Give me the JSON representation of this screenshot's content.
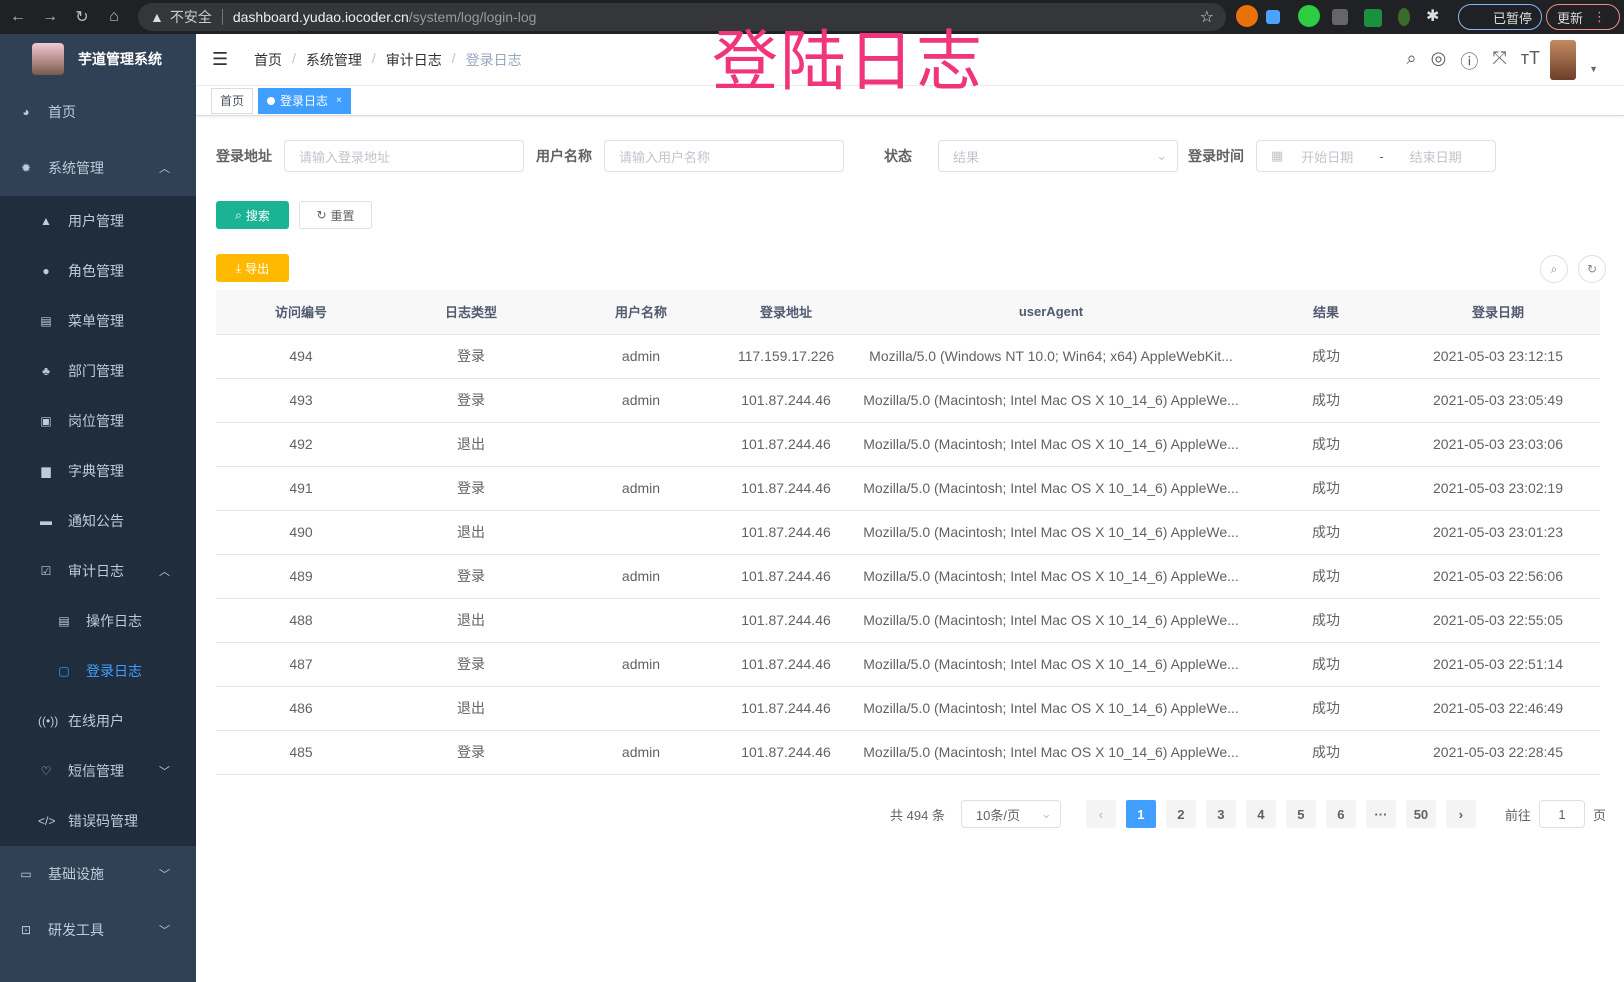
{
  "browser": {
    "security": "不安全",
    "host": "dashboard.yudao.iocoder.cn",
    "path": "/system/log/login-log",
    "paused": "已暂停",
    "update": "更新"
  },
  "overlay_title": "登陆日志",
  "sidebar": {
    "logo": "芋道管理系统",
    "items": [
      {
        "label": "首页",
        "icon": "dashboard-icon"
      },
      {
        "label": "系统管理",
        "icon": "gear-icon",
        "expanded": true,
        "children": [
          {
            "label": "用户管理",
            "icon": "user-icon"
          },
          {
            "label": "角色管理",
            "icon": "role-icon"
          },
          {
            "label": "菜单管理",
            "icon": "menu-icon"
          },
          {
            "label": "部门管理",
            "icon": "tree-icon"
          },
          {
            "label": "岗位管理",
            "icon": "post-icon"
          },
          {
            "label": "字典管理",
            "icon": "dict-icon"
          },
          {
            "label": "通知公告",
            "icon": "message-icon"
          },
          {
            "label": "审计日志",
            "icon": "edit-icon",
            "expanded": true,
            "children": [
              {
                "label": "操作日志",
                "icon": "form-icon"
              },
              {
                "label": "登录日志",
                "icon": "logininfor-icon",
                "active": true
              }
            ]
          },
          {
            "label": "在线用户",
            "icon": "online-icon"
          },
          {
            "label": "短信管理",
            "icon": "validcode-icon"
          },
          {
            "label": "错误码管理",
            "icon": "code-icon"
          }
        ]
      },
      {
        "label": "基础设施",
        "icon": "monitor-icon"
      },
      {
        "label": "研发工具",
        "icon": "tool-icon"
      }
    ]
  },
  "header": {
    "breadcrumb": [
      "首页",
      "系统管理",
      "审计日志",
      "登录日志"
    ]
  },
  "tags": [
    {
      "label": "首页"
    },
    {
      "label": "登录日志",
      "active": true
    }
  ],
  "filters": {
    "address_label": "登录地址",
    "address_ph": "请输入登录地址",
    "username_label": "用户名称",
    "username_ph": "请输入用户名称",
    "status_label": "状态",
    "status_ph": "结果",
    "time_label": "登录时间",
    "start_ph": "开始日期",
    "sep": "-",
    "end_ph": "结束日期"
  },
  "buttons": {
    "search": "搜索",
    "reset": "重置",
    "export": "导出"
  },
  "table": {
    "columns": [
      "访问编号",
      "日志类型",
      "用户名称",
      "登录地址",
      "userAgent",
      "结果",
      "登录日期"
    ],
    "rows": [
      [
        "494",
        "登录",
        "admin",
        "117.159.17.226",
        "Mozilla/5.0 (Windows NT 10.0; Win64; x64) AppleWebKit...",
        "成功",
        "2021-05-03 23:12:15"
      ],
      [
        "493",
        "登录",
        "admin",
        "101.87.244.46",
        "Mozilla/5.0 (Macintosh; Intel Mac OS X 10_14_6) AppleWe...",
        "成功",
        "2021-05-03 23:05:49"
      ],
      [
        "492",
        "退出",
        "",
        "101.87.244.46",
        "Mozilla/5.0 (Macintosh; Intel Mac OS X 10_14_6) AppleWe...",
        "成功",
        "2021-05-03 23:03:06"
      ],
      [
        "491",
        "登录",
        "admin",
        "101.87.244.46",
        "Mozilla/5.0 (Macintosh; Intel Mac OS X 10_14_6) AppleWe...",
        "成功",
        "2021-05-03 23:02:19"
      ],
      [
        "490",
        "退出",
        "",
        "101.87.244.46",
        "Mozilla/5.0 (Macintosh; Intel Mac OS X 10_14_6) AppleWe...",
        "成功",
        "2021-05-03 23:01:23"
      ],
      [
        "489",
        "登录",
        "admin",
        "101.87.244.46",
        "Mozilla/5.0 (Macintosh; Intel Mac OS X 10_14_6) AppleWe...",
        "成功",
        "2021-05-03 22:56:06"
      ],
      [
        "488",
        "退出",
        "",
        "101.87.244.46",
        "Mozilla/5.0 (Macintosh; Intel Mac OS X 10_14_6) AppleWe...",
        "成功",
        "2021-05-03 22:55:05"
      ],
      [
        "487",
        "登录",
        "admin",
        "101.87.244.46",
        "Mozilla/5.0 (Macintosh; Intel Mac OS X 10_14_6) AppleWe...",
        "成功",
        "2021-05-03 22:51:14"
      ],
      [
        "486",
        "退出",
        "",
        "101.87.244.46",
        "Mozilla/5.0 (Macintosh; Intel Mac OS X 10_14_6) AppleWe...",
        "成功",
        "2021-05-03 22:46:49"
      ],
      [
        "485",
        "登录",
        "admin",
        "101.87.244.46",
        "Mozilla/5.0 (Macintosh; Intel Mac OS X 10_14_6) AppleWe...",
        "成功",
        "2021-05-03 22:28:45"
      ]
    ]
  },
  "pagination": {
    "total": "共 494 条",
    "page_size": "10条/页",
    "pages": [
      "1",
      "2",
      "3",
      "4",
      "5",
      "6",
      "···",
      "50"
    ],
    "current": "1",
    "goto_label": "前往",
    "goto_value": "1",
    "goto_suffix": "页"
  },
  "colors": {
    "sidebar": "#304156",
    "primary": "#409eff",
    "search": "#1ab394",
    "export": "#ffba00"
  }
}
